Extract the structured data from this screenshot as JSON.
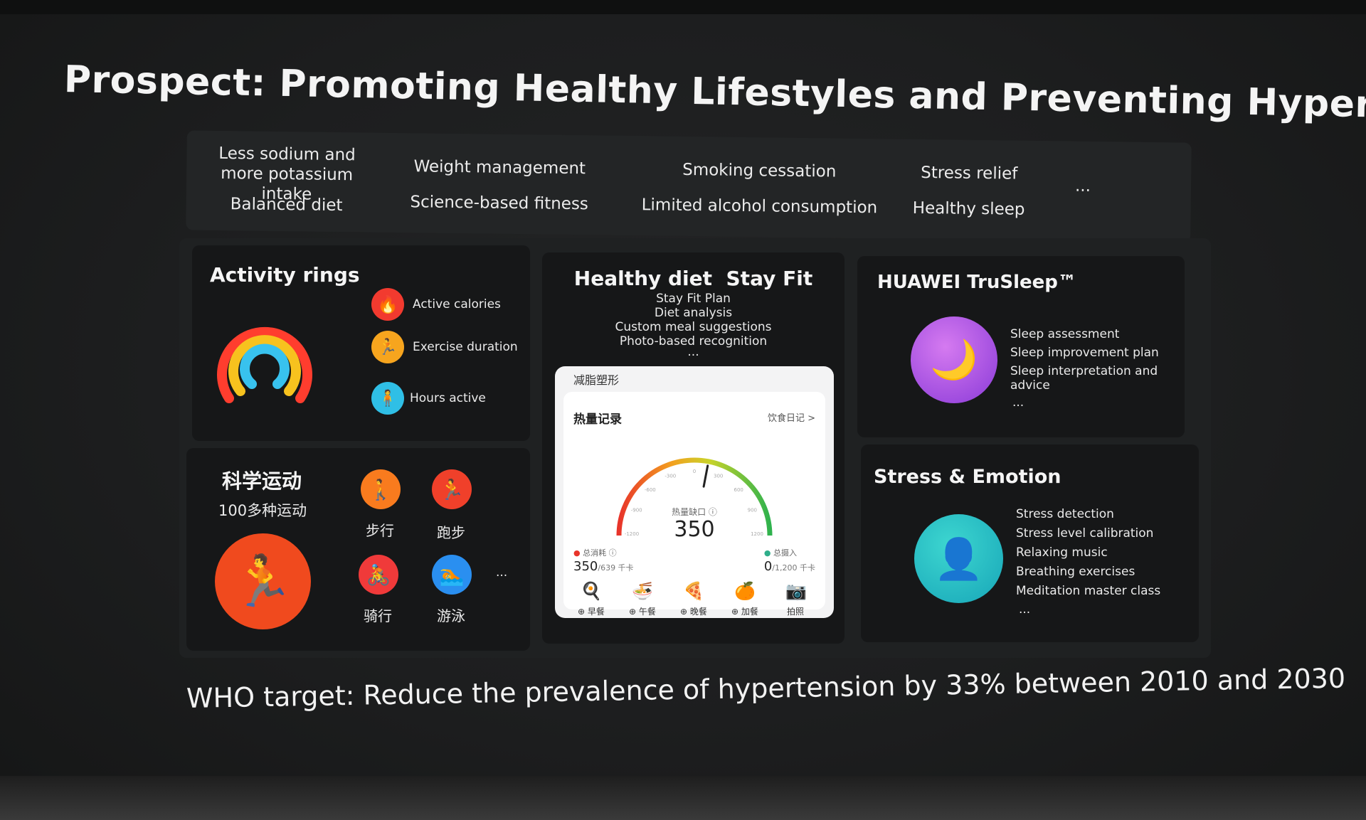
{
  "title": "Prospect: Promoting Healthy Lifestyles and Preventing Hypertension",
  "goals": {
    "sodium": "Less sodium and more potassium intake",
    "balanced": "Balanced diet",
    "weight": "Weight management",
    "fitness": "Science-based fitness",
    "smoking": "Smoking cessation",
    "alcohol": "Limited alcohol consumption",
    "stress": "Stress relief",
    "sleep": "Healthy sleep",
    "more": "..."
  },
  "activity": {
    "heading": "Activity rings",
    "items": [
      "Active calories",
      "Exercise duration",
      "Hours active"
    ]
  },
  "sports": {
    "heading": "科学运动",
    "sub": "100多种运动",
    "items": [
      "步行",
      "跑步",
      "骑行",
      "游泳"
    ],
    "more": "..."
  },
  "diet": {
    "heading": "Healthy diet  Stay Fit",
    "items": [
      "Stay Fit Plan",
      "Diet analysis",
      "Custom meal suggestions",
      "Photo-based recognition"
    ],
    "more": "...",
    "app": {
      "mode": "减脂塑形",
      "card_title": "热量记录",
      "diary_link": "饮食日记 >",
      "gauge_label": "热量缺口 ⓘ",
      "gauge_value": "350",
      "gauge_ticks": [
        "-1200",
        "-900",
        "-600",
        "-300",
        "0",
        "300",
        "600",
        "900",
        "1200"
      ],
      "gauge_fraction": 0.56,
      "burn_label": "总消耗 ⓘ",
      "burn_value": "350",
      "burn_total": "/639 千卡",
      "intake_label": "总摄入",
      "intake_value": "0",
      "intake_total": "/1,200 千卡",
      "meals": [
        "⊕ 早餐",
        "⊕ 午餐",
        "⊕ 晚餐",
        "⊕ 加餐",
        "拍照"
      ]
    }
  },
  "trusleep": {
    "heading": "HUAWEI TruSleep™",
    "items": [
      "Sleep assessment",
      "Sleep improvement plan",
      "Sleep interpretation and advice"
    ],
    "more": "..."
  },
  "stress": {
    "heading": "Stress & Emotion",
    "items": [
      "Stress detection",
      "Stress level calibration",
      "Relaxing music",
      "Breathing exercises",
      "Meditation master class"
    ],
    "more": "..."
  },
  "who": "WHO target: Reduce the prevalence of hypertension by 33% between 2010 and 2030"
}
